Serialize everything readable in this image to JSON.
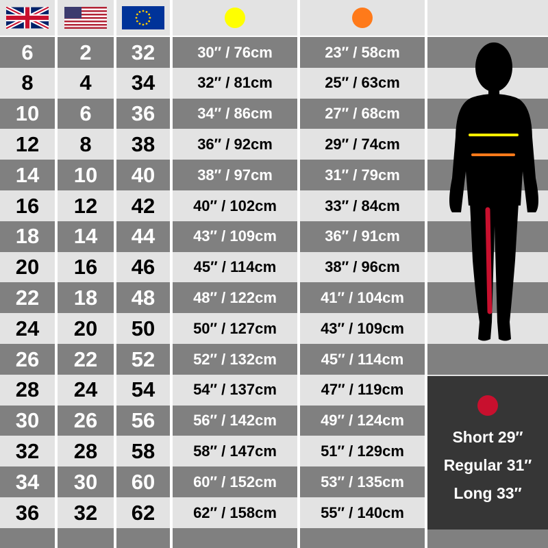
{
  "header": {
    "flags": [
      {
        "icon": "uk-flag-icon"
      },
      {
        "icon": "us-flag-icon"
      },
      {
        "icon": "eu-flag-icon"
      }
    ],
    "bust_dot_color": "#ffff00",
    "waist_dot_color": "#ff7a1a"
  },
  "rows": [
    {
      "uk": "6",
      "us": "2",
      "eu": "32",
      "bust": "30″ / 76cm",
      "waist": "23″ / 58cm"
    },
    {
      "uk": "8",
      "us": "4",
      "eu": "34",
      "bust": "32″ / 81cm",
      "waist": "25″ / 63cm"
    },
    {
      "uk": "10",
      "us": "6",
      "eu": "36",
      "bust": "34″ / 86cm",
      "waist": "27″ / 68cm"
    },
    {
      "uk": "12",
      "us": "8",
      "eu": "38",
      "bust": "36″ / 92cm",
      "waist": "29″ / 74cm"
    },
    {
      "uk": "14",
      "us": "10",
      "eu": "40",
      "bust": "38″ / 97cm",
      "waist": "31″ / 79cm"
    },
    {
      "uk": "16",
      "us": "12",
      "eu": "42",
      "bust": "40″ / 102cm",
      "waist": "33″ / 84cm"
    },
    {
      "uk": "18",
      "us": "14",
      "eu": "44",
      "bust": "43″ / 109cm",
      "waist": "36″ / 91cm"
    },
    {
      "uk": "20",
      "us": "16",
      "eu": "46",
      "bust": "45″ / 114cm",
      "waist": "38″ / 96cm"
    },
    {
      "uk": "22",
      "us": "18",
      "eu": "48",
      "bust": "48″ / 122cm",
      "waist": "41″ / 104cm"
    },
    {
      "uk": "24",
      "us": "20",
      "eu": "50",
      "bust": "50″ / 127cm",
      "waist": "43″ / 109cm"
    },
    {
      "uk": "26",
      "us": "22",
      "eu": "52",
      "bust": "52″ / 132cm",
      "waist": "45″ / 114cm"
    },
    {
      "uk": "28",
      "us": "24",
      "eu": "54",
      "bust": "54″ / 137cm",
      "waist": "47″ / 119cm"
    },
    {
      "uk": "30",
      "us": "26",
      "eu": "56",
      "bust": "56″ / 142cm",
      "waist": "49″ / 124cm"
    },
    {
      "uk": "32",
      "us": "28",
      "eu": "58",
      "bust": "58″ / 147cm",
      "waist": "51″ / 129cm"
    },
    {
      "uk": "34",
      "us": "30",
      "eu": "60",
      "bust": "60″ / 152cm",
      "waist": "53″ / 135cm"
    },
    {
      "uk": "36",
      "us": "32",
      "eu": "62",
      "bust": "62″ / 158cm",
      "waist": "55″ / 140cm"
    }
  ],
  "leg_length": {
    "dot_color": "#c8102e",
    "options": [
      "Short 29″",
      "Regular 31″",
      "Long 33″"
    ]
  },
  "figure": {
    "icon": "female-silhouette-icon",
    "bust_line_color": "#ffee00",
    "waist_line_color": "#ff7a1a",
    "inseam_line_color": "#c8102e"
  }
}
